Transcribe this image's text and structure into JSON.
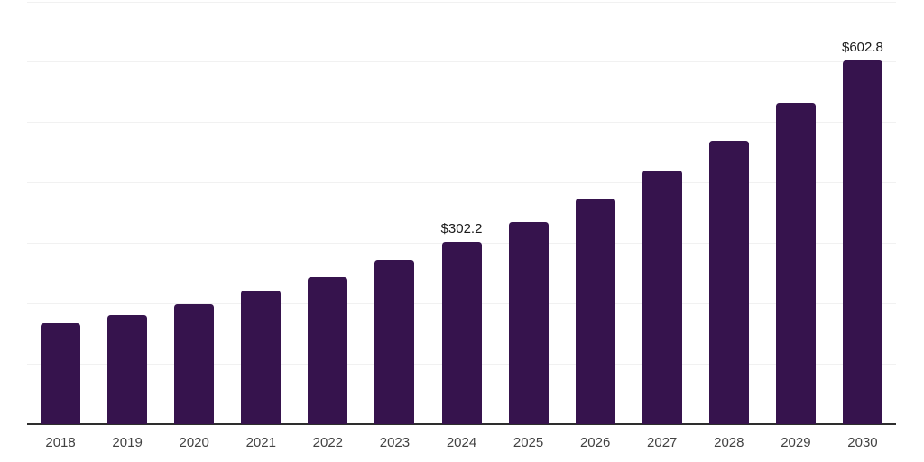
{
  "chart_data": {
    "type": "bar",
    "title": "",
    "xlabel": "",
    "ylabel": "",
    "categories": [
      "2018",
      "2019",
      "2020",
      "2021",
      "2022",
      "2023",
      "2024",
      "2025",
      "2026",
      "2027",
      "2028",
      "2029",
      "2030"
    ],
    "values": [
      166.8,
      181.4,
      199.6,
      220.8,
      244.2,
      272.0,
      302.2,
      335.2,
      373.4,
      419.6,
      470.2,
      532.3,
      602.8
    ],
    "data_labels": [
      {
        "category": "2024",
        "text": "$302.2"
      },
      {
        "category": "2030",
        "text": "$602.8"
      }
    ],
    "ylim": [
      0,
      700
    ],
    "gridline_step": 100,
    "grid": true,
    "legend": false,
    "colors": {
      "bar": "#36134D",
      "background": "#ffffff",
      "gridline": "#f1f1f1",
      "axis_line": "#2e2e2e",
      "tick_label": "#424242",
      "data_label": "#1a1a1a"
    }
  }
}
